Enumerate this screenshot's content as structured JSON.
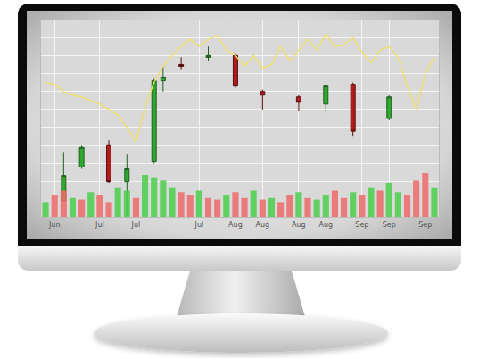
{
  "chart_data": {
    "type": "candlestick",
    "categories": [
      null,
      "Jun",
      null,
      null,
      null,
      null,
      "Jul",
      null,
      null,
      null,
      "Jul",
      null,
      null,
      null,
      null,
      null,
      null,
      "Jul",
      null,
      null,
      null,
      "Aug",
      null,
      null,
      "Aug",
      null,
      null,
      null,
      "Aug",
      null,
      null,
      "Aug",
      null,
      null,
      null,
      "Sep",
      null,
      null,
      "Sep",
      null,
      null,
      null,
      "Sep",
      null
    ],
    "series": [
      {
        "type": "bar",
        "axis": "y2",
        "values": [
          30,
          45,
          55,
          40,
          35,
          50,
          45,
          30,
          60,
          55,
          40,
          85,
          80,
          75,
          60,
          50,
          45,
          55,
          40,
          35,
          45,
          50,
          40,
          55,
          35,
          40,
          30,
          45,
          50,
          40,
          35,
          45,
          55,
          40,
          50,
          45,
          60,
          55,
          70,
          50,
          45,
          75,
          90,
          60
        ],
        "colors": [
          "#4ccf4c",
          "#ef6b6b",
          "#ef6b6b",
          "#4ccf4c",
          "#ef6b6b",
          "#4ccf4c",
          "#ef6b6b",
          "#ef6b6b",
          "#4ccf4c",
          "#4ccf4c",
          "#ef6b6b",
          "#4ccf4c",
          "#4ccf4c",
          "#4ccf4c",
          "#4ccf4c",
          "#ef6b6b",
          "#ef6b6b",
          "#4ccf4c",
          "#ef6b6b",
          "#ef6b6b",
          "#4ccf4c",
          "#ef6b6b",
          "#ef6b6b",
          "#4ccf4c",
          "#ef6b6b",
          "#4ccf4c",
          "#ef6b6b",
          "#ef6b6b",
          "#4ccf4c",
          "#ef6b6b",
          "#4ccf4c",
          "#4ccf4c",
          "#ef6b6b",
          "#ef6b6b",
          "#4ccf4c",
          "#ef6b6b",
          "#4ccf4c",
          "#ef6b6b",
          "#4ccf4c",
          "#4ccf4c",
          "#ef6b6b",
          "#ef6b6b",
          "#ef6b6b",
          "#4ccf4c"
        ]
      },
      {
        "type": "line",
        "color": "#f0e060",
        "values": [
          75,
          74,
          70,
          68,
          67,
          65,
          63,
          60,
          57,
          50,
          42,
          61,
          75,
          84,
          90,
          95,
          99,
          95,
          99,
          101,
          93,
          90,
          84,
          90,
          83,
          85,
          95,
          87,
          93,
          99,
          93,
          102,
          95,
          96,
          100,
          92,
          86,
          93,
          95,
          89,
          73,
          60,
          80,
          89
        ]
      },
      {
        "type": "candlestick",
        "color": "#2fa82f",
        "open": [
          null,
          null,
          9,
          null,
          28,
          null,
          null,
          40,
          null,
          20,
          null,
          null,
          31,
          76,
          null,
          85,
          null,
          null,
          89,
          null,
          null,
          90,
          null,
          null,
          70,
          null,
          null,
          null,
          67,
          null,
          null,
          63,
          null,
          null,
          74,
          null,
          null,
          null,
          55,
          null,
          null,
          null,
          null,
          null
        ],
        "high": [
          null,
          null,
          36,
          null,
          40,
          null,
          null,
          43,
          null,
          35,
          null,
          null,
          77,
          84,
          null,
          89,
          null,
          null,
          95,
          null,
          null,
          91,
          null,
          null,
          71,
          null,
          null,
          null,
          68,
          null,
          null,
          74,
          null,
          null,
          75,
          null,
          null,
          null,
          68,
          null,
          null,
          null,
          null,
          null
        ],
        "low": [
          null,
          null,
          9,
          null,
          27,
          null,
          null,
          19,
          null,
          1,
          null,
          null,
          30,
          70,
          null,
          82,
          null,
          null,
          87,
          null,
          null,
          72,
          null,
          null,
          60,
          null,
          null,
          null,
          59,
          null,
          null,
          58,
          null,
          null,
          45,
          null,
          null,
          null,
          54,
          null,
          null,
          null,
          null,
          null
        ],
        "close": [
          null,
          null,
          23,
          null,
          39,
          null,
          null,
          20,
          null,
          27,
          null,
          null,
          76,
          78,
          null,
          84,
          null,
          null,
          90,
          null,
          null,
          73,
          null,
          null,
          68,
          null,
          null,
          null,
          64,
          null,
          null,
          73,
          null,
          null,
          48,
          null,
          null,
          null,
          67,
          null,
          null,
          null,
          null,
          null
        ]
      }
    ],
    "ylim": [
      0,
      110
    ],
    "yticks": [
      0,
      10,
      20,
      30,
      40,
      50,
      60,
      70,
      80,
      90,
      100,
      110
    ],
    "y2lim": [
      0,
      400
    ],
    "grid": true,
    "tick_labels": "x"
  }
}
